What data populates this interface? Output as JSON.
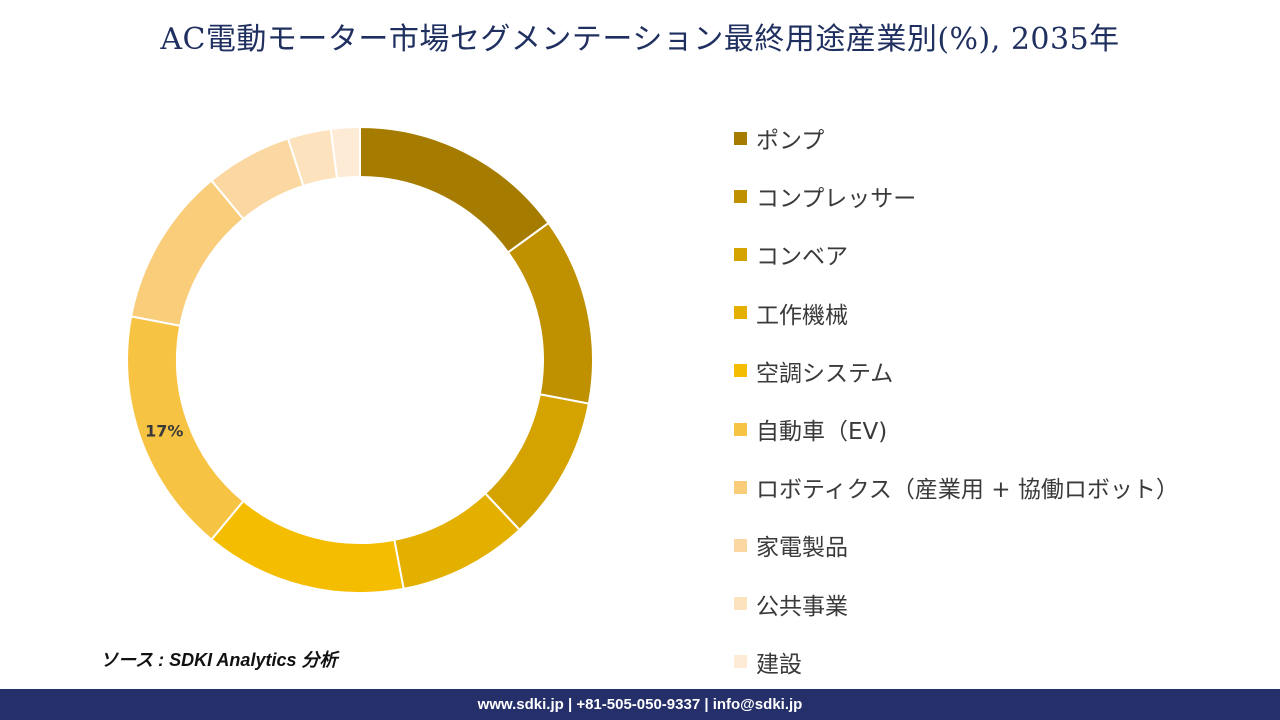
{
  "title": "AC電動モーター市場セグメンテーション最終用途産業別(%), 2035年",
  "chart_data": {
    "type": "pie",
    "variant": "donut",
    "categories": [
      "ポンプ",
      "コンプレッサー",
      "コンベア",
      "工作機械",
      "空調システム",
      "自動車（EV)",
      "ロボティクス（産業用 + 協働ロボット）",
      "家電製品",
      "公共事業",
      "建設"
    ],
    "values": [
      15,
      13,
      10,
      9,
      14,
      17,
      11,
      6,
      3,
      2
    ],
    "colors": [
      "#a67c00",
      "#bf9000",
      "#d4a300",
      "#e4b000",
      "#f5bd00",
      "#f7c343",
      "#f9cd7a",
      "#fbd8a1",
      "#fce2bd",
      "#fdebd6"
    ],
    "data_labels": [
      {
        "category": "自動車（EV)",
        "text": "17%"
      }
    ],
    "legend_position": "right",
    "title": "AC電動モーター市場セグメンテーション最終用途産業別(%), 2035年"
  },
  "source": "ソース : SDKI Analytics 分析",
  "footer": "www.sdki.jp | +81-505-050-9337 | info@sdki.jp"
}
